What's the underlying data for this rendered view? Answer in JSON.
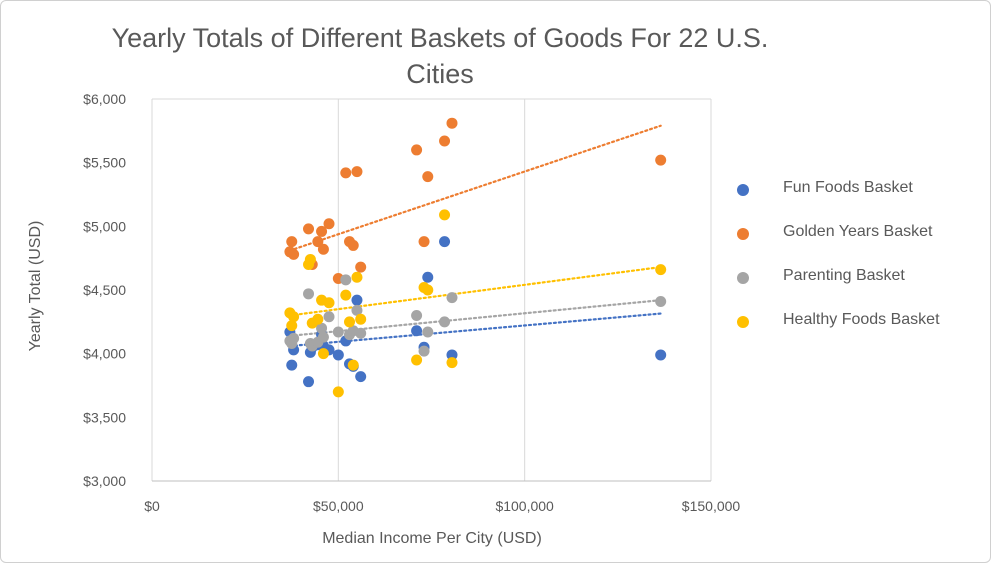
{
  "chart_data": {
    "type": "scatter",
    "title": "Yearly Totals of Different Baskets of Goods For 22 U.S. Cities",
    "xlabel": "Median Income Per City (USD)",
    "ylabel": "Yearly Total (USD)",
    "xlim": [
      0,
      150000
    ],
    "ylim": [
      3000,
      6000
    ],
    "x_ticks": [
      "$0",
      "$50,000",
      "$100,000",
      "$150,000"
    ],
    "y_ticks": [
      "$3,000",
      "$3,500",
      "$4,000",
      "$4,500",
      "$5,000",
      "$5,500",
      "$6,000"
    ],
    "grid": "vertical",
    "legend_position": "right",
    "x": [
      37000,
      37500,
      38000,
      42000,
      42500,
      43000,
      44500,
      45500,
      46000,
      47500,
      50000,
      52000,
      53000,
      54000,
      55000,
      56000,
      71000,
      73000,
      74000,
      78500,
      80500,
      136500
    ],
    "series": [
      {
        "name": "Fun Foods Basket",
        "color": "#4472C4",
        "trendline": [
          4060,
          4315
        ],
        "values": [
          4170,
          3910,
          4030,
          3780,
          4010,
          4050,
          4070,
          4150,
          4060,
          4030,
          3990,
          4100,
          3920,
          3900,
          4420,
          3820,
          4180,
          4050,
          4600,
          4880,
          3990,
          3990
        ]
      },
      {
        "name": "Golden Years Basket",
        "color": "#ED7D31",
        "trendline": [
          4810,
          5790
        ],
        "values": [
          4800,
          4880,
          4780,
          4980,
          4720,
          4700,
          4880,
          4960,
          4820,
          5020,
          4590,
          5420,
          4880,
          4850,
          5430,
          4680,
          5600,
          4880,
          5390,
          5670,
          5810,
          5520
        ]
      },
      {
        "name": "Parenting Basket",
        "color": "#A5A5A5",
        "trendline": [
          4140,
          4420
        ],
        "values": [
          4100,
          4080,
          4120,
          4470,
          4080,
          4060,
          4090,
          4200,
          4130,
          4290,
          4170,
          4580,
          4150,
          4180,
          4340,
          4160,
          4300,
          4020,
          4170,
          4250,
          4440,
          4410
        ]
      },
      {
        "name": "Healthy Foods Basket",
        "color": "#FFC000",
        "trendline": [
          4300,
          4680
        ],
        "values": [
          4320,
          4220,
          4290,
          4700,
          4740,
          4240,
          4270,
          4420,
          4000,
          4400,
          3700,
          4460,
          4250,
          3910,
          4600,
          4270,
          3950,
          4520,
          4500,
          5090,
          3930,
          4660
        ]
      }
    ]
  }
}
